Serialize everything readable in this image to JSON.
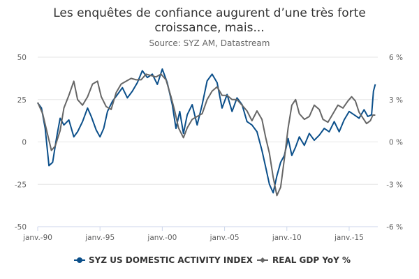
{
  "chart_data": {
    "type": "line",
    "title_line1": "Les enquêtes de confiance augurent d’une très forte",
    "title_line2": "croissance, mais...",
    "subtitle": "Source: SYZ AM, Datastream",
    "x_ticks": [
      "janv.-90",
      "janv.-95",
      "janv.-00",
      "janv.-05",
      "janv.-10",
      "janv.-15"
    ],
    "y_left": {
      "min": -50,
      "max": 50,
      "ticks": [
        "50",
        "25",
        "0",
        "-25",
        "-50"
      ]
    },
    "y_right": {
      "min": -6,
      "max": 6,
      "ticks": [
        "6 %",
        "3 %",
        "0 %",
        "-3 %",
        "-6 %"
      ]
    },
    "grid": true,
    "legend_position": "bottom",
    "series": [
      {
        "name": "SYZ US DOMESTIC ACTIVITY INDEX",
        "axis": "left",
        "color": "#0b4f8a",
        "points": [
          [
            1990.0,
            23
          ],
          [
            1990.3,
            20
          ],
          [
            1990.6,
            8
          ],
          [
            1990.9,
            -14
          ],
          [
            1991.2,
            -12
          ],
          [
            1991.5,
            2
          ],
          [
            1991.8,
            14
          ],
          [
            1992.1,
            10
          ],
          [
            1992.5,
            13
          ],
          [
            1992.9,
            3
          ],
          [
            1993.2,
            6
          ],
          [
            1993.6,
            12
          ],
          [
            1994.0,
            20
          ],
          [
            1994.3,
            15
          ],
          [
            1994.7,
            7
          ],
          [
            1995.0,
            3
          ],
          [
            1995.3,
            8
          ],
          [
            1995.6,
            18
          ],
          [
            1996.0,
            24
          ],
          [
            1996.4,
            28
          ],
          [
            1996.8,
            32
          ],
          [
            1997.2,
            26
          ],
          [
            1997.6,
            30
          ],
          [
            1998.0,
            35
          ],
          [
            1998.4,
            42
          ],
          [
            1998.8,
            38
          ],
          [
            1999.2,
            40
          ],
          [
            1999.6,
            34
          ],
          [
            2000.0,
            43
          ],
          [
            2000.4,
            35
          ],
          [
            2000.8,
            22
          ],
          [
            2001.1,
            8
          ],
          [
            2001.4,
            18
          ],
          [
            2001.7,
            5
          ],
          [
            2002.0,
            16
          ],
          [
            2002.4,
            22
          ],
          [
            2002.8,
            10
          ],
          [
            2003.2,
            22
          ],
          [
            2003.6,
            36
          ],
          [
            2004.0,
            40
          ],
          [
            2004.4,
            35
          ],
          [
            2004.8,
            20
          ],
          [
            2005.2,
            28
          ],
          [
            2005.6,
            18
          ],
          [
            2006.0,
            26
          ],
          [
            2006.4,
            22
          ],
          [
            2006.8,
            12
          ],
          [
            2007.2,
            10
          ],
          [
            2007.6,
            6
          ],
          [
            2008.0,
            -5
          ],
          [
            2008.3,
            -15
          ],
          [
            2008.6,
            -25
          ],
          [
            2008.9,
            -30
          ],
          [
            2009.2,
            -20
          ],
          [
            2009.5,
            -12
          ],
          [
            2009.8,
            -8
          ],
          [
            2010.1,
            2
          ],
          [
            2010.4,
            -8
          ],
          [
            2010.7,
            -3
          ],
          [
            2011.0,
            3
          ],
          [
            2011.4,
            -2
          ],
          [
            2011.8,
            5
          ],
          [
            2012.2,
            1
          ],
          [
            2012.6,
            4
          ],
          [
            2013.0,
            8
          ],
          [
            2013.4,
            6
          ],
          [
            2013.8,
            12
          ],
          [
            2014.2,
            6
          ],
          [
            2014.6,
            13
          ],
          [
            2015.0,
            18
          ],
          [
            2015.4,
            16
          ],
          [
            2015.8,
            14
          ],
          [
            2016.2,
            19
          ],
          [
            2016.5,
            15
          ],
          [
            2016.8,
            16
          ],
          [
            2016.95,
            30
          ],
          [
            2017.1,
            34
          ]
        ]
      },
      {
        "name": "REAL GDP YoY %",
        "axis": "right",
        "color": "#666666",
        "points": [
          [
            1990.0,
            2.8
          ],
          [
            1990.4,
            2.0
          ],
          [
            1990.8,
            0.5
          ],
          [
            1991.1,
            -0.6
          ],
          [
            1991.4,
            -0.3
          ],
          [
            1991.8,
            0.8
          ],
          [
            1992.1,
            2.4
          ],
          [
            1992.5,
            3.3
          ],
          [
            1992.9,
            4.3
          ],
          [
            1993.2,
            3.0
          ],
          [
            1993.6,
            2.6
          ],
          [
            1994.0,
            3.2
          ],
          [
            1994.4,
            4.1
          ],
          [
            1994.8,
            4.3
          ],
          [
            1995.1,
            3.2
          ],
          [
            1995.5,
            2.5
          ],
          [
            1995.9,
            2.3
          ],
          [
            1996.3,
            3.5
          ],
          [
            1996.7,
            4.1
          ],
          [
            1997.1,
            4.3
          ],
          [
            1997.5,
            4.5
          ],
          [
            1997.9,
            4.4
          ],
          [
            1998.3,
            4.4
          ],
          [
            1998.7,
            4.8
          ],
          [
            1999.1,
            4.7
          ],
          [
            1999.5,
            4.6
          ],
          [
            1999.9,
            4.8
          ],
          [
            2000.3,
            4.4
          ],
          [
            2000.7,
            3.2
          ],
          [
            2001.0,
            2.2
          ],
          [
            2001.3,
            1.0
          ],
          [
            2001.7,
            0.3
          ],
          [
            2002.0,
            1.0
          ],
          [
            2002.4,
            1.6
          ],
          [
            2002.8,
            1.8
          ],
          [
            2003.2,
            2.0
          ],
          [
            2003.6,
            3.0
          ],
          [
            2004.0,
            3.6
          ],
          [
            2004.4,
            3.9
          ],
          [
            2004.8,
            3.3
          ],
          [
            2005.2,
            3.3
          ],
          [
            2005.6,
            3.0
          ],
          [
            2006.0,
            3.0
          ],
          [
            2006.4,
            2.6
          ],
          [
            2006.8,
            2.2
          ],
          [
            2007.2,
            1.5
          ],
          [
            2007.6,
            2.2
          ],
          [
            2008.0,
            1.6
          ],
          [
            2008.3,
            0.3
          ],
          [
            2008.6,
            -0.8
          ],
          [
            2008.9,
            -2.5
          ],
          [
            2009.2,
            -3.8
          ],
          [
            2009.5,
            -3.2
          ],
          [
            2009.8,
            -1.2
          ],
          [
            2010.1,
            1.0
          ],
          [
            2010.4,
            2.6
          ],
          [
            2010.7,
            3.0
          ],
          [
            2011.0,
            2.0
          ],
          [
            2011.4,
            1.6
          ],
          [
            2011.8,
            1.8
          ],
          [
            2012.2,
            2.6
          ],
          [
            2012.6,
            2.3
          ],
          [
            2012.9,
            1.6
          ],
          [
            2013.3,
            1.4
          ],
          [
            2013.7,
            2.0
          ],
          [
            2014.1,
            2.6
          ],
          [
            2014.5,
            2.4
          ],
          [
            2014.9,
            2.9
          ],
          [
            2015.2,
            3.2
          ],
          [
            2015.5,
            2.9
          ],
          [
            2015.8,
            2.1
          ],
          [
            2016.1,
            1.7
          ],
          [
            2016.4,
            1.3
          ],
          [
            2016.7,
            1.5
          ],
          [
            2016.9,
            1.9
          ],
          [
            2017.1,
            1.9
          ]
        ]
      }
    ]
  }
}
